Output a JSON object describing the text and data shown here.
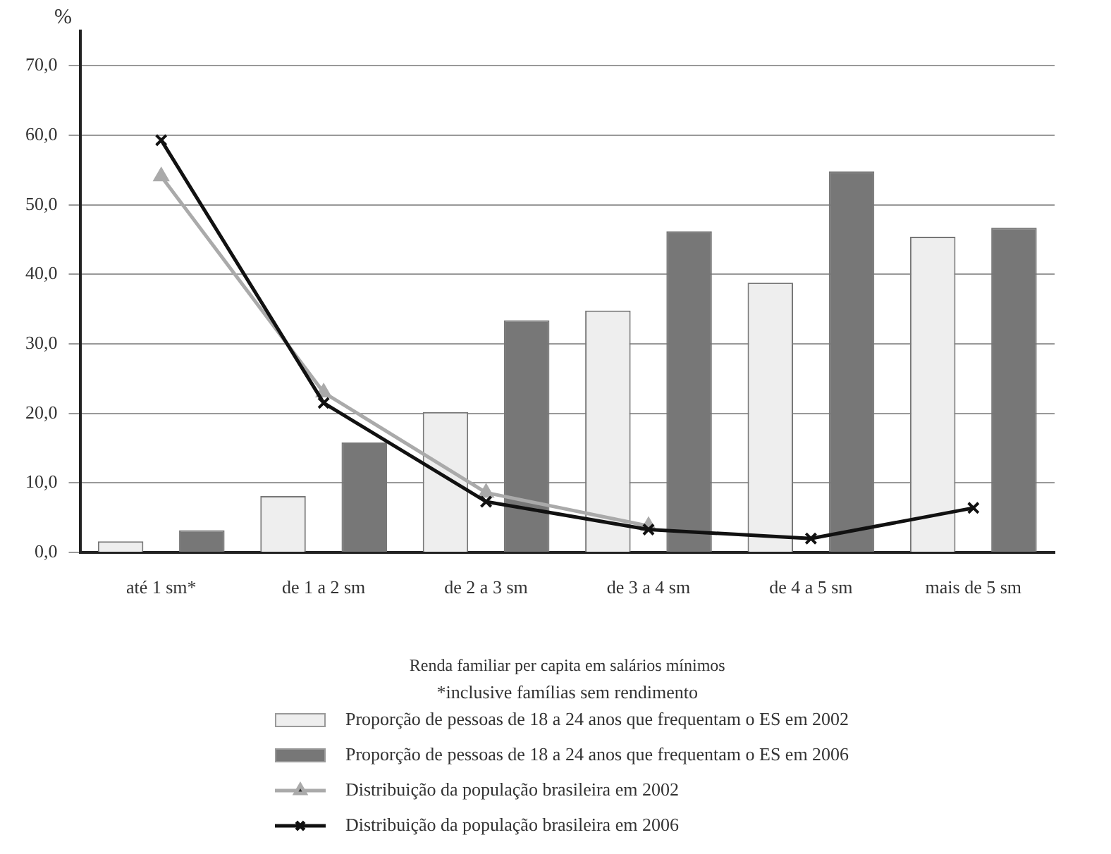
{
  "chart_data": {
    "type": "bar",
    "ylabel": "%",
    "xlabel": "Renda familiar per capita em salários mínimos",
    "annotations": [
      "*inclusive famílias sem rendimento"
    ],
    "categories": [
      "até 1 sm*",
      "de 1 a 2 sm",
      "de 2 a 3 sm",
      "de 3 a 4 sm",
      "de 4 a 5 sm",
      "mais de 5 sm"
    ],
    "series": [
      {
        "name": "Proporção de pessoas de 18 a 24 anos que frequentam o ES em 2002",
        "color": "#eeeeee",
        "values": [
          1.6,
          8.1,
          20.2,
          34.8,
          38.8,
          45.4
        ]
      },
      {
        "name": "Proporção de pessoas de 18 a 24 anos que frequentam o ES em 2006",
        "color": "#777777",
        "values": [
          3.2,
          15.8,
          33.4,
          46.2,
          54.8,
          46.7
        ]
      },
      {
        "name": "Distribuição da população brasileira em 2002",
        "type": "line",
        "color": "#aaaaaa",
        "marker": "triangle",
        "values": [
          54.1,
          23.0,
          8.6,
          3.8,
          null,
          null
        ]
      },
      {
        "name": "Distribuição da população brasileira em 2006",
        "type": "line",
        "color": "#111111",
        "marker": "cross",
        "values": [
          59.3,
          21.5,
          7.3,
          3.3,
          2.0,
          6.4
        ]
      }
    ],
    "ylim": [
      0,
      75
    ],
    "yticks": [
      {
        "value": 0,
        "label": "0,0"
      },
      {
        "value": 10,
        "label": "10,0"
      },
      {
        "value": 20,
        "label": "20,0"
      },
      {
        "value": 30,
        "label": "30,0"
      },
      {
        "value": 40,
        "label": "40,0"
      },
      {
        "value": 50,
        "label": "50,0"
      },
      {
        "value": 60,
        "label": "60,0"
      },
      {
        "value": 70,
        "label": "70,0"
      }
    ],
    "grid": "y",
    "legend": "bottom"
  }
}
